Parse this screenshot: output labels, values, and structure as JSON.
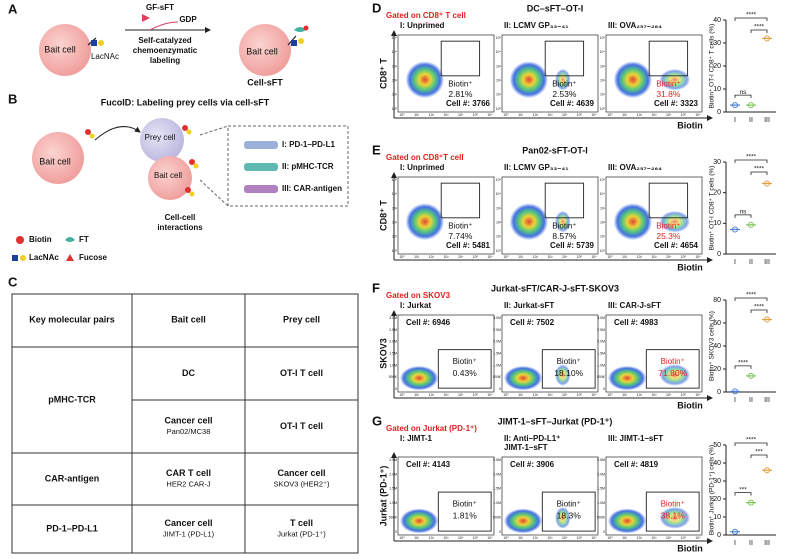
{
  "panel_a": {
    "label": "A",
    "bait": "Bait cell",
    "lacnac": "LacNAc",
    "reagent": "GF-sFT",
    "byproduct": "GDP",
    "process": [
      "Self-catalyzed",
      "chemoenzymatic",
      "labeling"
    ],
    "product_bait": "Bait cell",
    "product": "Cell-sFT"
  },
  "panel_b": {
    "label": "B",
    "title": "FucoID: Labeling prey cells via cell-sFT",
    "bait": "Bait cell",
    "prey": "Prey cell",
    "bait2": "Bait cell",
    "interactions": [
      "Cell-cell",
      "interactions"
    ],
    "pairs": [
      "I: PD-1–PD-L1",
      "II: pMHC-TCR",
      "III: CAR-antigen"
    ],
    "legend": [
      "Biotin",
      "FT",
      "LacNAc",
      "Fucose"
    ]
  },
  "panel_c": {
    "label": "C",
    "header": [
      "Key molecular pairs",
      "Bait cell",
      "Prey cell"
    ],
    "groups": [
      {
        "pair": "pMHC-TCR",
        "rows": [
          {
            "bait": [
              "DC"
            ],
            "prey": [
              "OT-I T cell"
            ]
          },
          {
            "bait": [
              "Cancer cell",
              "Pan02/MC38"
            ],
            "prey": [
              "OT-I T cell"
            ]
          }
        ]
      },
      {
        "pair": "CAR-antigen",
        "rows": [
          {
            "bait": [
              "CAR T cell",
              "HER2 CAR-J"
            ],
            "prey": [
              "Cancer cell",
              "SKOV3 (HER2⁺)"
            ]
          }
        ]
      },
      {
        "pair": "PD-1–PD-L1",
        "rows": [
          {
            "bait": [
              "Cancer cell",
              "JIMT-1 (PD-L1)"
            ],
            "prey": [
              "T cell",
              "Jurkat (PD-1⁺)"
            ]
          }
        ]
      }
    ]
  },
  "flow_panels": [
    {
      "label": "D",
      "gate": "Gated on CD8⁺ T cell",
      "title": "DC–sFT–OT-I",
      "y_axis": "CD8⁺ T",
      "x_axis": "Biotin",
      "gate_label": "Biotin⁺",
      "x_ticks": [
        "10⁰",
        "10¹",
        "10²",
        "10³",
        "10⁴",
        "10⁵",
        "10⁶"
      ],
      "y_ticks": [
        "10⁰",
        "10¹",
        "10²",
        "10³",
        "10⁴",
        "10⁵"
      ],
      "samples": [
        {
          "name": [
            "I: Unprimed"
          ],
          "percent": "2.81%",
          "count": "Cell #: 3766"
        },
        {
          "name": [
            "II: LCMV GP₃₃₋₄₁"
          ],
          "percent": "2.53%",
          "count": "Cell #: 4639"
        },
        {
          "name": [
            "III: OVA₂₅₇₋₂₆₄"
          ],
          "percent": "31.8%",
          "count": "Cell #: 3323"
        }
      ],
      "dotplot": {
        "ylabel": "Biotin⁺ OT-I CD8⁺ T cells (%)",
        "ylim": [
          0,
          40
        ],
        "yticks": [
          0,
          10,
          20,
          30,
          40
        ],
        "categories": [
          "I",
          "II",
          "III"
        ],
        "values": [
          3,
          3,
          32
        ],
        "colors": [
          "#4a7fd4",
          "#7cc45a",
          "#e0a040"
        ],
        "significance": [
          "ns",
          "****",
          "****"
        ]
      }
    },
    {
      "label": "E",
      "gate": "Gated on CD8⁺T cell",
      "title": "Pan02-sFT-OT-I",
      "y_axis": "CD8⁺ T",
      "x_axis": "Biotin",
      "gate_label": "Biotin⁺",
      "x_ticks": [
        "10⁰",
        "10¹",
        "10²",
        "10³",
        "10⁴",
        "10⁵",
        "10⁶"
      ],
      "y_ticks": [
        "10⁰",
        "10¹",
        "10²",
        "10³",
        "10⁴",
        "10⁵"
      ],
      "samples": [
        {
          "name": [
            "I: Unprimed"
          ],
          "percent": "7.74%",
          "count": "Cell #: 5481"
        },
        {
          "name": [
            "II: LCMV GP₃₃₋₄₁"
          ],
          "percent": "8.57%",
          "count": "Cell #: 5739"
        },
        {
          "name": [
            "III: OVA₂₅₇₋₂₆₄"
          ],
          "percent": "25.3%",
          "count": "Cell #: 4654"
        }
      ],
      "dotplot": {
        "ylabel": "Biotin⁺ OT-I CD8⁺ T cells (%)",
        "ylim": [
          0,
          30
        ],
        "yticks": [
          0,
          10,
          20,
          30
        ],
        "categories": [
          "I",
          "II",
          "III"
        ],
        "values": [
          8,
          9.5,
          23
        ],
        "colors": [
          "#4a7fd4",
          "#7cc45a",
          "#e0a040"
        ],
        "significance": [
          "ns",
          "****",
          "****"
        ]
      }
    },
    {
      "label": "F",
      "gate": "Gated on SKOV3",
      "title": "Jurkat-sFT/CAR-J-sFT-SKOV3",
      "y_axis": "SKOV3",
      "x_axis": "Biotin",
      "gate_label": "Biotin⁺",
      "x_ticks": [
        "10⁰",
        "10¹",
        "10²",
        "10³",
        "10⁴",
        "10⁵",
        "10⁶"
      ],
      "y_ticks": [
        "0",
        "500K",
        "1.0M",
        "1.5M",
        "2.0M",
        "2.5M",
        "3.0M"
      ],
      "samples": [
        {
          "name": [
            "I: Jurkat"
          ],
          "percent": "0.43%",
          "count": "Cell #: 6946"
        },
        {
          "name": [
            "II: Jurkat-sFT"
          ],
          "percent": "18.10%",
          "count": "Cell #: 7502"
        },
        {
          "name": [
            "III: CAR-J-sFT"
          ],
          "percent": "71.80%",
          "count": "Cell #: 4983"
        }
      ],
      "dotplot": {
        "ylabel": "Biotin⁺ SKOV3 cells (%)",
        "ylim": [
          0,
          80
        ],
        "yticks": [
          0,
          20,
          40,
          60,
          80
        ],
        "categories": [
          "I",
          "II",
          "III"
        ],
        "values": [
          0.5,
          14,
          63
        ],
        "colors": [
          "#4a7fd4",
          "#7cc45a",
          "#e0a040"
        ],
        "significance": [
          "****",
          "****",
          "****"
        ]
      }
    },
    {
      "label": "G",
      "gate": "Gated on Jurkat (PD-1⁺)",
      "title": "JIMT-1–sFT–Jurkat (PD-1⁺)",
      "y_axis": "Jurkat (PD-1⁺)",
      "x_axis": "Biotin",
      "gate_label": "Biotin⁺",
      "x_ticks": [
        "10⁰",
        "10¹",
        "10²",
        "10³",
        "10⁴",
        "10⁵",
        "10⁶"
      ],
      "y_ticks": [
        "0",
        "500K",
        "1.0M",
        "1.5M",
        "2.0M",
        "2.5M"
      ],
      "samples": [
        {
          "name": [
            "I: JIMT-1"
          ],
          "percent": "1.81%",
          "count": "Cell #: 4143"
        },
        {
          "name": [
            "II: Anti–PD-L1⁺",
            "JIMT-1–sFT"
          ],
          "percent": "18.3%",
          "count": "Cell #: 3906"
        },
        {
          "name": [
            "III: JIMT-1–sFT"
          ],
          "percent": "38.1%",
          "count": "Cell #: 4819"
        }
      ],
      "dotplot": {
        "ylabel": "Biotin⁺ Jurkat (PD-1⁺) cells (%)",
        "ylim": [
          0,
          50
        ],
        "yticks": [
          0,
          10,
          20,
          30,
          40,
          50
        ],
        "categories": [
          "I",
          "II",
          "III"
        ],
        "values": [
          1.8,
          18,
          36
        ],
        "colors": [
          "#4a7fd4",
          "#7cc45a",
          "#e0a040"
        ],
        "significance": [
          "***",
          "***",
          "****"
        ]
      }
    }
  ]
}
